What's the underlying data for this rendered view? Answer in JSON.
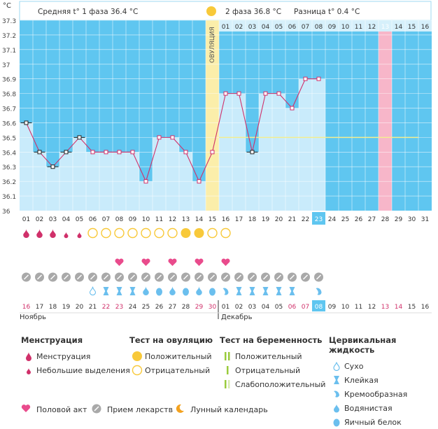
{
  "header": {
    "unit": "°C",
    "phase1_label": "Средняя t° 1 фаза 36.4 °С",
    "phase2_label": "2 фаза 36.8 °С",
    "diff_label": "Разница t° 0.4 °С",
    "ovulation_label": "ОВУЛЯЦИЯ"
  },
  "colors": {
    "plot_bg": "#5fc6f0",
    "bar_fill": "#c9ebfb",
    "header_bg": "#d6f0fb",
    "ovulation_band": "#fbeeaa",
    "highlight_day": "#f7b6c9",
    "line": "#d0306a",
    "coverline": "#f3ee90",
    "red": "#d0306a",
    "sun": "#f8c93a",
    "heart": "#e94b8c",
    "pill": "#a9a9a9",
    "drop": "#6bbfee",
    "test_green": "#9acb3c"
  },
  "chart_data": {
    "type": "line",
    "title": "",
    "xlabel": "",
    "ylabel": "°C",
    "ylim": [
      36.0,
      37.3
    ],
    "y_ticks": [
      "36",
      "36.1",
      "36.2",
      "36.3",
      "36.4",
      "36.5",
      "36.6",
      "36.7",
      "36.8",
      "36.9",
      "37",
      "37.1",
      "37.2",
      "37.3"
    ],
    "cycle_days": [
      "01",
      "02",
      "03",
      "04",
      "05",
      "06",
      "07",
      "08",
      "09",
      "10",
      "11",
      "12",
      "13",
      "14",
      "15",
      "16",
      "17",
      "18",
      "19",
      "20",
      "21",
      "22",
      "23",
      "24",
      "25",
      "26",
      "27",
      "28",
      "29",
      "30",
      "31"
    ],
    "current_day": "23",
    "phase2_days": [
      "01",
      "02",
      "03",
      "04",
      "05",
      "06",
      "07",
      "08",
      "09",
      "10",
      "11",
      "12",
      "13",
      "14",
      "15",
      "16"
    ],
    "highlight_phase2_day": "13",
    "ovulation_day": 15,
    "coverline": 36.5,
    "series": [
      {
        "values": [
          36.6,
          36.4,
          36.3,
          36.4,
          36.5,
          36.4,
          36.4,
          36.4,
          36.4,
          36.2,
          36.5,
          36.5,
          36.4,
          36.2,
          36.4,
          36.8,
          36.8,
          36.4,
          36.8,
          36.8,
          36.7,
          36.9,
          36.9
        ],
        "square_markers": [
          1,
          2,
          3,
          4,
          5,
          18
        ]
      }
    ],
    "menstruation": [
      "big",
      "big",
      "big",
      "small",
      "small"
    ],
    "ovulation_test": [
      "",
      "",
      "",
      "",
      "",
      "neg",
      "neg",
      "neg",
      "neg",
      "neg",
      "neg",
      "neg",
      "pos",
      "pos",
      "neg",
      "neg"
    ],
    "intercourse_days": [
      8,
      10,
      12,
      14,
      16
    ],
    "medicine_days": 23,
    "cervical_fluid": [
      "",
      "",
      "",
      "",
      "",
      "dry",
      "sticky",
      "sticky",
      "sticky",
      "watery",
      "egg",
      "watery",
      "egg",
      "watery",
      "egg",
      "creamy",
      "sticky",
      "sticky",
      "sticky",
      "sticky",
      "sticky",
      "",
      "creamy"
    ],
    "calendar_dates": [
      "16",
      "17",
      "18",
      "19",
      "20",
      "21",
      "22",
      "23",
      "24",
      "25",
      "26",
      "27",
      "28",
      "29",
      "30",
      "01",
      "02",
      "03",
      "04",
      "05",
      "06",
      "07",
      "08",
      "09",
      "10",
      "11",
      "12",
      "13",
      "14",
      "15",
      "16"
    ],
    "red_dates": [
      0,
      6,
      7,
      13,
      14,
      20,
      21,
      27,
      28
    ],
    "month_labels": [
      "Ноябрь",
      "Декабрь"
    ]
  },
  "legend": {
    "menstruation": {
      "title": "Менструация",
      "items": [
        "Менструация",
        "Небольшие выделения"
      ]
    },
    "ovulation_test": {
      "title": "Тест на овуляцию",
      "items": [
        "Положительный",
        "Отрицательный"
      ]
    },
    "pregnancy_test": {
      "title": "Тест на беременность",
      "items": [
        "Положительный",
        "Отрицательный",
        "Слабоположительный"
      ]
    },
    "cervical": {
      "title": "Цервикальная жидкость",
      "items": [
        "Сухо",
        "Клейкая",
        "Кремообразная",
        "Водянистая",
        "Яичный белок"
      ]
    },
    "bottom": [
      "Половой акт",
      "Прием лекарств",
      "Лунный календарь"
    ]
  }
}
